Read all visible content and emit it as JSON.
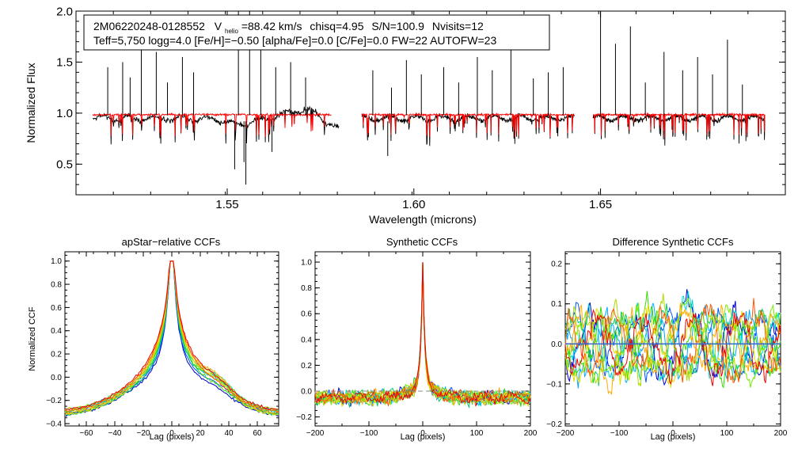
{
  "chart_data": [
    {
      "type": "line",
      "panel": "spectrum",
      "header": {
        "star_id": "2M06220248-0128552",
        "vhelio": "V",
        "vhelio_sub": "helio",
        "vhelio_val": "=88.42 km/s",
        "chisq": "chisq=4.95",
        "sn": "S/N=100.9",
        "nvisits": "Nvisits=12",
        "line2": "Teff=5,750 logg=4.0 [Fe/H]=−0.50 [alpha/Fe]=0.0 [C/Fe]=0.0 FW=22 AUTOFW=23"
      },
      "xlabel": "Wavelength (microns)",
      "ylabel": "Normalized Flux",
      "xlim": [
        1.5095,
        1.6995
      ],
      "ylim": [
        0.2,
        2.0
      ],
      "xticks": [
        "1.55",
        "1.60",
        "1.65"
      ],
      "xtick_vals": [
        1.55,
        1.6,
        1.65
      ],
      "yticks": [
        "0.5",
        "1.0",
        "1.5",
        "2.0"
      ],
      "ytick_vals": [
        0.5,
        1.0,
        1.5,
        2.0
      ],
      "chips": [
        [
          1.514,
          1.58
        ],
        [
          1.586,
          1.643
        ],
        [
          1.648,
          1.694
        ]
      ],
      "series": [
        {
          "name": "observed",
          "color": "#000000"
        },
        {
          "name": "model",
          "color": "#ff0000"
        }
      ],
      "emission_spikes": [
        1.518,
        1.522,
        1.524,
        1.527,
        1.531,
        1.534,
        1.538,
        1.541,
        1.553,
        1.556,
        1.559,
        1.563,
        1.567,
        1.571,
        1.589,
        1.594,
        1.598,
        1.602,
        1.608,
        1.612,
        1.617,
        1.621,
        1.626,
        1.632,
        1.636,
        1.64,
        1.65,
        1.654,
        1.658,
        1.662,
        1.667,
        1.672,
        1.676,
        1.68,
        1.684,
        1.688
      ],
      "spike_peaks": [
        1.45,
        1.5,
        1.35,
        1.7,
        1.6,
        1.3,
        1.55,
        1.4,
        2.0,
        2.0,
        1.95,
        1.45,
        1.5,
        1.35,
        1.42,
        1.25,
        1.52,
        1.38,
        1.45,
        1.3,
        1.55,
        1.42,
        1.65,
        1.34,
        1.4,
        1.45,
        2.0,
        1.68,
        1.85,
        1.3,
        1.6,
        1.42,
        1.55,
        1.38,
        1.72,
        1.28
      ]
    },
    {
      "type": "line",
      "panel": "apstar_ccf",
      "title": "apStar−relative CCFs",
      "xlabel": "Lag (pixels)",
      "ylabel": "Normalized CCF",
      "xlim": [
        -75,
        75
      ],
      "ylim": [
        -0.42,
        1.08
      ],
      "xticks": [
        "−60",
        "−40",
        "−20",
        "0",
        "20",
        "40",
        "60"
      ],
      "xtick_vals": [
        -60,
        -40,
        -20,
        0,
        20,
        40,
        60
      ],
      "yticks": [
        "−0.4",
        "−0.2",
        "0.0",
        "0.2",
        "0.4",
        "0.6",
        "0.8",
        "1.0"
      ],
      "ytick_vals": [
        -0.4,
        -0.2,
        0.0,
        0.2,
        0.4,
        0.6,
        0.8,
        1.0
      ],
      "n_series": 12
    },
    {
      "type": "line",
      "panel": "synthetic_ccf",
      "title": "Synthetic CCFs",
      "xlabel": "Lag (pixels)",
      "ylabel": "",
      "xlim": [
        -200,
        200
      ],
      "ylim": [
        -0.27,
        1.08
      ],
      "xticks": [
        "−200",
        "−100",
        "0",
        "100",
        "200"
      ],
      "xtick_vals": [
        -200,
        -100,
        0,
        100,
        200
      ],
      "yticks": [
        "−0.2",
        "0.0",
        "0.2",
        "0.4",
        "0.6",
        "0.8",
        "1.0"
      ],
      "ytick_vals": [
        -0.2,
        0.0,
        0.2,
        0.4,
        0.6,
        0.8,
        1.0
      ],
      "n_series": 12
    },
    {
      "type": "line",
      "panel": "difference_ccf",
      "title": "Difference Synthetic CCFs",
      "xlabel": "Lag (pixels)",
      "ylabel": "",
      "xlim": [
        -200,
        200
      ],
      "ylim": [
        -0.205,
        0.23
      ],
      "xticks": [
        "−200",
        "−100",
        "0",
        "100",
        "200"
      ],
      "xtick_vals": [
        -200,
        -100,
        0,
        100,
        200
      ],
      "yticks": [
        "−0.2",
        "−0.1",
        "0.0",
        "0.1",
        "0.2"
      ],
      "ytick_vals": [
        -0.2,
        -0.1,
        0.0,
        0.1,
        0.2
      ],
      "n_series": 12
    }
  ],
  "palette": [
    "#0000cc",
    "#0055ff",
    "#00aaff",
    "#00d2d2",
    "#00cc66",
    "#33dd00",
    "#77ee00",
    "#aadd00",
    "#dddd00",
    "#ffaa00",
    "#ff5500",
    "#ee0000"
  ]
}
